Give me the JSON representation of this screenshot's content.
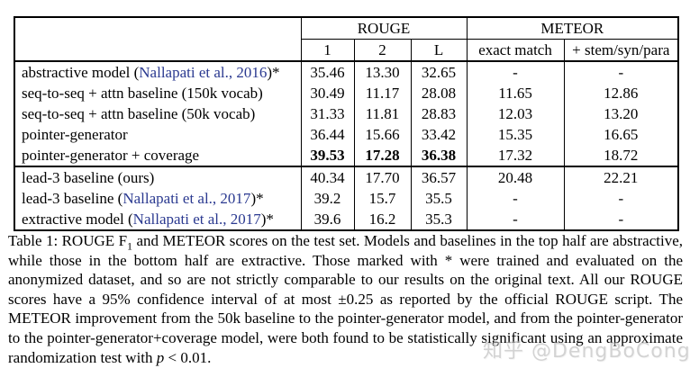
{
  "colors": {
    "citation_link": "#2a3990",
    "text": "#000000",
    "watermark": "#b9b9b9",
    "background": "#ffffff"
  },
  "table": {
    "header": {
      "rouge_label": "ROUGE",
      "meteor_label": "METEOR",
      "sub_cols": [
        "1",
        "2",
        "L",
        "exact match",
        "+ stem/syn/para"
      ]
    },
    "groups": [
      {
        "rows": [
          {
            "model": {
              "pre": "abstractive model (",
              "cite": "Nallapati et al., 2016",
              "post": ")*"
            },
            "values": [
              "35.46",
              "13.30",
              "32.65",
              "-",
              "-"
            ]
          },
          {
            "model": {
              "pre": "seq-to-seq + attn baseline (150k vocab)",
              "cite": "",
              "post": ""
            },
            "values": [
              "30.49",
              "11.17",
              "28.08",
              "11.65",
              "12.86"
            ]
          },
          {
            "model": {
              "pre": "seq-to-seq + attn baseline (50k vocab)",
              "cite": "",
              "post": ""
            },
            "values": [
              "31.33",
              "11.81",
              "28.83",
              "12.03",
              "13.20"
            ]
          },
          {
            "model": {
              "pre": "pointer-generator",
              "cite": "",
              "post": ""
            },
            "values": [
              "36.44",
              "15.66",
              "33.42",
              "15.35",
              "16.65"
            ]
          },
          {
            "model": {
              "pre": "pointer-generator + coverage",
              "cite": "",
              "post": ""
            },
            "values": [
              "39.53",
              "17.28",
              "36.38",
              "17.32",
              "18.72"
            ],
            "bold": [
              true,
              true,
              true,
              false,
              false
            ]
          }
        ]
      },
      {
        "rows": [
          {
            "model": {
              "pre": "lead-3 baseline (ours)",
              "cite": "",
              "post": ""
            },
            "values": [
              "40.34",
              "17.70",
              "36.57",
              "20.48",
              "22.21"
            ]
          },
          {
            "model": {
              "pre": "lead-3 baseline (",
              "cite": "Nallapati et al., 2017",
              "post": ")*"
            },
            "values": [
              "39.2",
              "15.7",
              "35.5",
              "-",
              "-"
            ]
          },
          {
            "model": {
              "pre": "extractive model (",
              "cite": "Nallapati et al., 2017",
              "post": ")*"
            },
            "values": [
              "39.6",
              "16.2",
              "35.3",
              "-",
              "-"
            ]
          }
        ]
      }
    ]
  },
  "caption": {
    "segments": [
      {
        "text": "Table 1: ROUGE F",
        "style": "normal",
        "name": "caption-text"
      },
      {
        "text": "1",
        "style": "sub",
        "name": "caption-subscript"
      },
      {
        "text": " and METEOR scores on the test set. Models and baselines in the top half are abstractive, while those in the bottom half are extractive. Those marked with * were trained and evaluated on the anonymized dataset, and so are not strictly comparable to our results on the original text. All our ROUGE scores have a 95% confidence interval of at most ±0.25 as reported by the official ROUGE script. The METEOR improvement from the 50k baseline to the pointer-generator model, and from the pointer-generator to the pointer-generator+coverage model, were both found to be statistically significant using an approximate randomization test with ",
        "style": "normal",
        "name": "caption-text"
      },
      {
        "text": "p",
        "style": "italic",
        "name": "caption-variable"
      },
      {
        "text": " < 0.01.",
        "style": "normal",
        "name": "caption-text"
      }
    ]
  },
  "watermark": {
    "text": "知乎 @DengBoCong"
  }
}
